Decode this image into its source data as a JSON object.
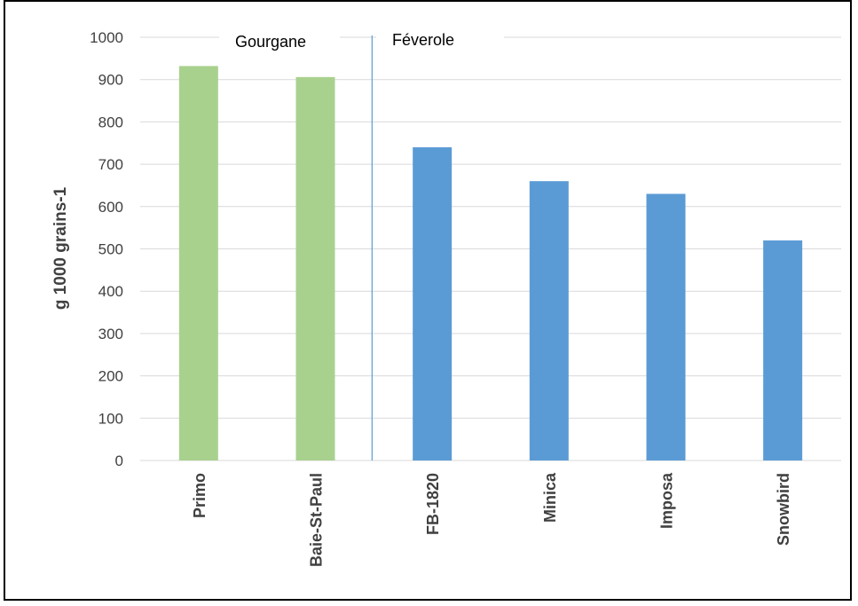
{
  "chart_data": {
    "type": "bar",
    "categories": [
      "Primo",
      "Baie-St-Paul",
      "FB-1820",
      "Minica",
      "Imposa",
      "Snowbird"
    ],
    "values": [
      932,
      906,
      740,
      660,
      630,
      520
    ],
    "ylabel": "g 1000 grains-1",
    "xlabel": "",
    "ylim": [
      0,
      1000
    ],
    "yticks": [
      0,
      100,
      200,
      300,
      400,
      500,
      600,
      700,
      800,
      900,
      1000
    ],
    "grid": true,
    "groups": [
      {
        "label": "Gourgane",
        "categories": [
          "Primo",
          "Baie-St-Paul"
        ]
      },
      {
        "label": "Féverole",
        "categories": [
          "FB-1820",
          "Minica",
          "Imposa",
          "Snowbird"
        ]
      }
    ],
    "colors": {
      "gourgane": "#a9d18e",
      "feverole": "#5b9bd5",
      "grid": "#d9d9d9",
      "divider": "#5b9bd5"
    }
  }
}
